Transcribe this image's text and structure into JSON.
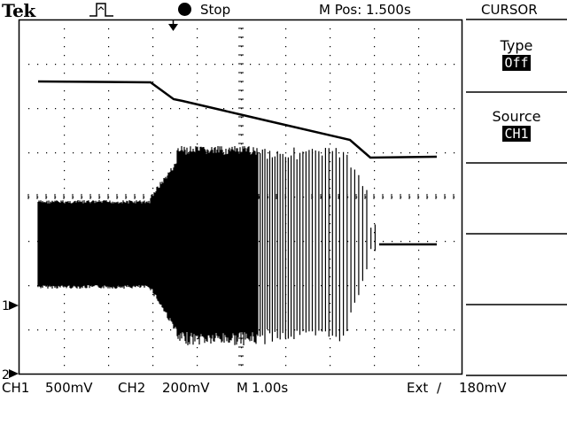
{
  "header": {
    "brand": "Tek",
    "run_status": "Stop",
    "horizontal_position": "M Pos: 1.500s",
    "menu_title": "CURSOR"
  },
  "side_menu": [
    {
      "label": "Type",
      "value": "Off"
    },
    {
      "label": "Source",
      "value": "CH1"
    }
  ],
  "status": {
    "ch1_label": "CH1",
    "ch1_scale": "500mV",
    "ch2_label": "CH2",
    "ch2_scale": "200mV",
    "timebase_label": "M",
    "timebase": "1.00s",
    "trigger_source": "Ext",
    "trigger_slope": "/",
    "trigger_level": "180mV"
  },
  "markers": {
    "ch1": "1",
    "ch2": "2"
  },
  "colors": {
    "background": "#ffffff",
    "trace": "#000000",
    "graticule": "#000000"
  },
  "icons": [
    "trigger-pulse-icon",
    "stop-indicator-icon",
    "trigger-position-icon"
  ]
}
